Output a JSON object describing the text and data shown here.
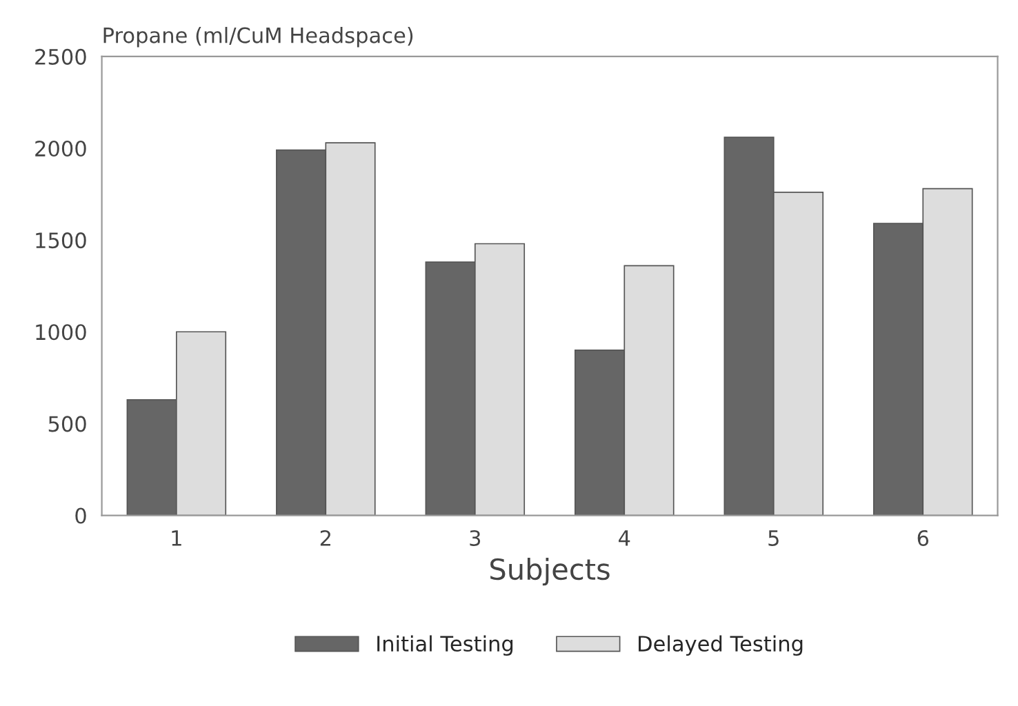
{
  "chart_data": {
    "type": "bar",
    "ylabel": "Propane (ml/CuM Headspace)",
    "xlabel": "Subjects",
    "categories": [
      "1",
      "2",
      "3",
      "4",
      "5",
      "6"
    ],
    "series": [
      {
        "name": "Initial Testing",
        "color": "#666666",
        "values": [
          630,
          1990,
          1380,
          900,
          2060,
          1590
        ]
      },
      {
        "name": "Delayed Testing",
        "color": "#dddddd",
        "values": [
          1000,
          2030,
          1480,
          1360,
          1760,
          1780
        ]
      }
    ],
    "ylim": [
      0,
      2500
    ],
    "yticks": [
      0,
      500,
      1000,
      1500,
      2000,
      2500
    ],
    "grid": false,
    "legend": "bottom"
  }
}
